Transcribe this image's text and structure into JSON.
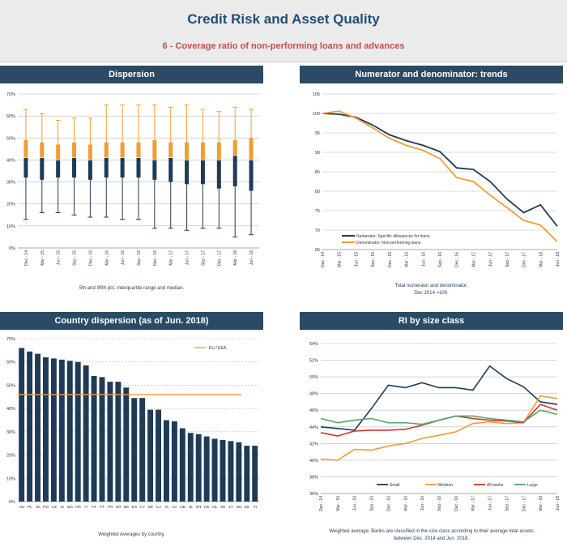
{
  "header": {
    "title": "Credit Risk and Asset Quality",
    "subtitle": "6 - Coverage ratio of non-performing loans and advances"
  },
  "colors": {
    "navy": "#1f3b57",
    "orange": "#f39c34",
    "red": "#d0342c",
    "green": "#4ea86c",
    "panel_bar": "#2b4a66"
  },
  "panels": {
    "dispersion": {
      "title": "Dispersion",
      "caption": "5th and 95th pct, interquartile range and median."
    },
    "trends": {
      "title": "Numerator and denominator: trends",
      "caption": "Total numerator and denominator.\nDec 2014 =100."
    },
    "country": {
      "title": "Country dispersion (as of Jun. 2018)",
      "caption": "Weighted Averages by country."
    },
    "size": {
      "title": "RI by size class",
      "caption": "Weighted average. Banks are classified in the size class according to their average total assets\nbetween Dec. 2014 and Jun. 2018."
    }
  },
  "chart_data": [
    {
      "id": "dispersion",
      "type": "box",
      "categories": [
        "Dec - 14",
        "Mar - 15",
        "Jun - 15",
        "Sep - 15",
        "Dec - 15",
        "Mar - 16",
        "Jun - 16",
        "Sep - 16",
        "Dec - 16",
        "Mar - 17",
        "Jun - 17",
        "Sep - 17",
        "Dec - 17",
        "Mar - 18",
        "Jun - 18"
      ],
      "p5": [
        13,
        16,
        16,
        15,
        14,
        14,
        13,
        13,
        9,
        9,
        8,
        9,
        9,
        5,
        6
      ],
      "p25": [
        32,
        31,
        32,
        32,
        31,
        32,
        32,
        32,
        31,
        30,
        29,
        29,
        27,
        28,
        26
      ],
      "median": [
        41,
        41,
        40,
        41,
        40,
        41,
        41,
        41,
        40,
        41,
        40,
        40,
        40,
        42,
        40
      ],
      "p75": [
        49,
        48,
        47,
        48,
        47,
        48,
        48,
        48,
        49,
        48,
        48,
        48,
        48,
        49,
        50
      ],
      "p95": [
        63,
        61,
        58,
        59,
        59,
        65,
        65,
        65,
        65,
        64,
        65,
        63,
        62,
        64,
        63
      ],
      "ylim": [
        0,
        70
      ],
      "yticks": [
        "0%",
        "10%",
        "20%",
        "30%",
        "40%",
        "50%",
        "60%",
        "70%"
      ]
    },
    {
      "id": "trends",
      "type": "line",
      "categories": [
        "Dec - 14",
        "Mar - 15",
        "Jun - 15",
        "Sep - 15",
        "Dec - 15",
        "Mar - 16",
        "Jun - 16",
        "Sep - 16",
        "Dec - 16",
        "Mar - 17",
        "Jun - 17",
        "Sep - 17",
        "Dec - 17",
        "Mar - 18",
        "Jun - 18"
      ],
      "series": [
        {
          "name": "Numerator: Specific allowances for loans",
          "color": "#1f3b57",
          "values": [
            100,
            99.8,
            99,
            97,
            94.5,
            93,
            91.8,
            90.2,
            86,
            85.6,
            82.5,
            78,
            74.5,
            76.5,
            71
          ]
        },
        {
          "name": "Denominator: Non-performing loans",
          "color": "#f39c34",
          "values": [
            100,
            100.6,
            98.8,
            96.3,
            93.6,
            91.8,
            90.5,
            88.4,
            83.5,
            82.5,
            79,
            75.8,
            72.5,
            71.3,
            67
          ]
        }
      ],
      "ylim": [
        65,
        105
      ],
      "yticks": [
        "65",
        "70",
        "75",
        "80",
        "85",
        "90",
        "95",
        "100",
        "105"
      ]
    },
    {
      "id": "country",
      "type": "bar",
      "categories": [
        "HU",
        "PL",
        "SK",
        "RO",
        "CZ",
        "SI",
        "BG",
        "HR",
        "IT",
        "AT",
        "PT",
        "FR",
        "GR",
        "BE",
        "ES",
        "CY",
        "DE",
        "LU",
        "IS",
        "LV",
        "GB",
        "IE",
        "MT",
        "DK",
        "NL",
        "SE",
        "LT",
        "NO",
        "EE",
        "FI"
      ],
      "values": [
        66,
        64.5,
        63.5,
        62,
        61.5,
        61,
        60.5,
        60,
        58.5,
        54,
        53.5,
        51.5,
        51.5,
        49,
        44.5,
        44.5,
        39.5,
        39.5,
        35,
        34.5,
        31.5,
        29.5,
        29,
        28,
        27,
        26.5,
        26,
        25.5,
        24,
        24
      ],
      "reference": {
        "name": "EU / EEA",
        "value": 46,
        "color": "#f39c34"
      },
      "ylim": [
        0,
        70
      ],
      "yticks": [
        "0%",
        "10%",
        "20%",
        "30%",
        "40%",
        "50%",
        "60%",
        "70%"
      ]
    },
    {
      "id": "size",
      "type": "line",
      "categories": [
        "Dec - 14",
        "Mar - 15",
        "Jun - 15",
        "Sep - 15",
        "Dec - 15",
        "Mar - 16",
        "Jun - 16",
        "Sep - 16",
        "Dec - 16",
        "Mar - 17",
        "Jun - 17",
        "Sep - 17",
        "Dec - 17",
        "Mar - 18",
        "Jun - 18"
      ],
      "series": [
        {
          "name": "Small",
          "color": "#1f3b57",
          "values": [
            44,
            43.8,
            43.6,
            46.2,
            49,
            48.7,
            49.3,
            48.7,
            48.7,
            48.4,
            51.3,
            49.8,
            48.8,
            47,
            46.7
          ]
        },
        {
          "name": "Medium",
          "color": "#f39c34",
          "values": [
            40.1,
            40,
            41.3,
            41.2,
            41.7,
            42,
            42.6,
            43,
            43.4,
            44.4,
            44.6,
            44.4,
            44.5,
            47.7,
            47.4
          ]
        },
        {
          "name": "All banks",
          "color": "#d0342c",
          "values": [
            43.3,
            42.9,
            43.5,
            43.6,
            43.6,
            43.7,
            44.2,
            44.8,
            45.3,
            45,
            44.8,
            44.7,
            44.5,
            46.7,
            46
          ]
        },
        {
          "name": "Large",
          "color": "#4ea86c",
          "values": [
            45,
            44.5,
            44.8,
            45,
            44.5,
            44.5,
            44.3,
            44.8,
            45.3,
            45.3,
            45,
            44.8,
            44.6,
            46,
            45.5
          ]
        }
      ],
      "ylim": [
        36,
        54
      ],
      "yticks": [
        "36%",
        "38%",
        "40%",
        "42%",
        "44%",
        "46%",
        "48%",
        "50%",
        "52%",
        "54%"
      ]
    }
  ]
}
